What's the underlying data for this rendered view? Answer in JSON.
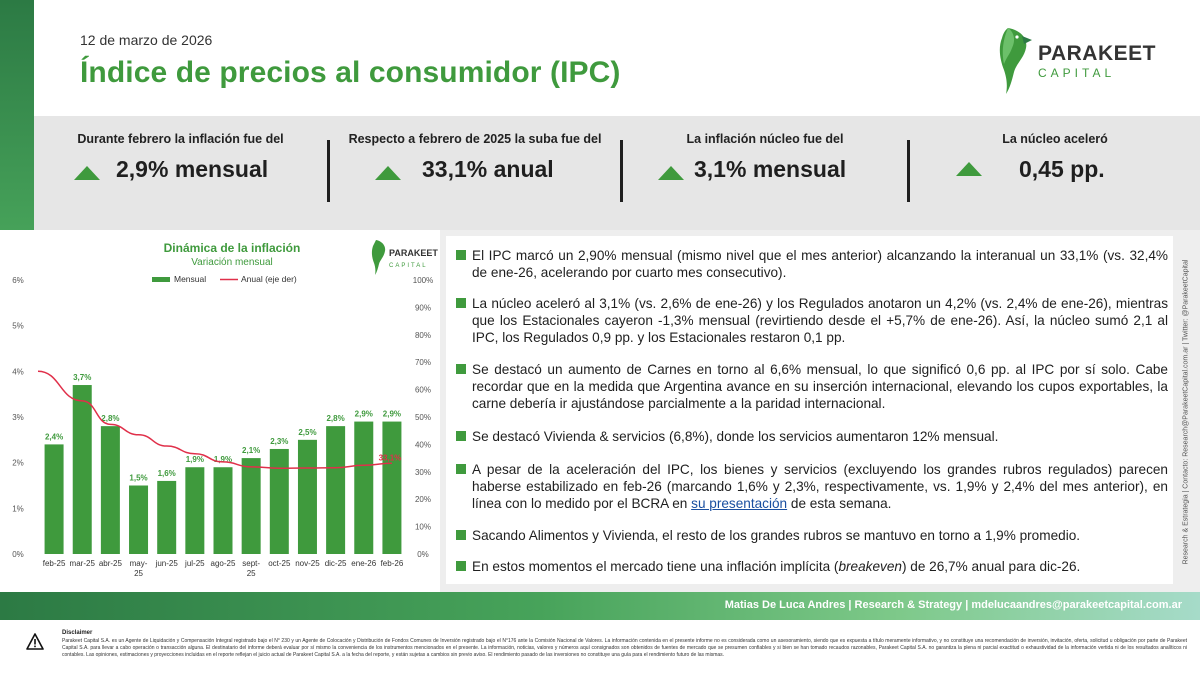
{
  "header": {
    "date": "12 de marzo de 2026",
    "title": "Índice de precios al consumidor (IPC)",
    "logo_word1": "PARAKEET",
    "logo_word2": "CAPITAL"
  },
  "kpis": [
    {
      "label": "Durante febrero la inflación fue del",
      "value": "2,9% mensual",
      "trend": "up"
    },
    {
      "label": "Respecto a febrero de 2025 la suba fue del",
      "value": "33,1% anual",
      "trend": "up"
    },
    {
      "label": "La inflación núcleo fue del",
      "value": "3,1% mensual",
      "trend": "up"
    },
    {
      "label": "La núcleo aceleró",
      "value": "0,45 pp.",
      "trend": "up"
    }
  ],
  "chart_data": {
    "type": "bar",
    "title": "Dinámica de la inflación",
    "subtitle": "Variación mensual",
    "categories": [
      "feb-25",
      "mar-25",
      "abr-25",
      "may-25",
      "jun-25",
      "jul-25",
      "ago-25",
      "sept-25",
      "oct-25",
      "nov-25",
      "dic-25",
      "ene-26",
      "feb-26"
    ],
    "series": [
      {
        "name": "Mensual",
        "kind": "bar",
        "axis": "left",
        "values": [
          2.4,
          3.7,
          2.8,
          1.5,
          1.6,
          1.9,
          1.9,
          2.1,
          2.3,
          2.5,
          2.8,
          2.9,
          2.9
        ],
        "labels": [
          "2,4%",
          "3,7%",
          "2,8%",
          "1,5%",
          "1,6%",
          "1,9%",
          "1,9%",
          "2,1%",
          "2,3%",
          "2,5%",
          "2,8%",
          "2,9%",
          "2,9%"
        ]
      },
      {
        "name": "Anual (eje der)",
        "kind": "line",
        "axis": "right",
        "values": [
          66.7,
          55.9,
          47.3,
          43.5,
          39.4,
          36.6,
          33.6,
          31.8,
          31.3,
          31.4,
          31.5,
          32.4,
          33.1
        ],
        "end_label": "33,1%"
      }
    ],
    "ylim_left": [
      0,
      6
    ],
    "ylim_right": [
      0,
      100
    ],
    "left_ticks": [
      "0%",
      "1%",
      "2%",
      "3%",
      "4%",
      "5%",
      "6%"
    ],
    "right_ticks": [
      "0%",
      "10%",
      "20%",
      "30%",
      "40%",
      "50%",
      "60%",
      "70%",
      "80%",
      "90%",
      "100%"
    ],
    "legend_position": "top-left",
    "colors": {
      "bar": "#3f9a3d",
      "line": "#e0304a",
      "title": "#3f9a3d"
    },
    "logo_word1": "PARAKEET",
    "logo_word2": "CAPITAL"
  },
  "bullets": [
    {
      "text": "El IPC marcó un 2,90% mensual (mismo nivel que el mes anterior) alcanzando la interanual un 33,1% (vs. 32,4% de ene-26, acelerando por cuarto mes consecutivo)."
    },
    {
      "text": "La núcleo aceleró al 3,1% (vs. 2,6% de ene-26) y los Regulados anotaron un 4,2% (vs. 2,4% de ene-26), mientras que los Estacionales cayeron -1,3% mensual (revirtiendo desde el +5,7% de ene-26). Así, la núcleo sumó 2,1 al IPC, los Regulados 0,9 pp. y los Estacionales restaron 0,1 pp."
    },
    {
      "text": "Se destacó un aumento de Carnes en torno al 6,6% mensual, lo que significó 0,6 pp. al IPC por sí solo. Cabe recordar que en la medida que Argentina avance en su inserción internacional, elevando los cupos exportables, la carne debería ir ajustándose parcialmente a la paridad internacional."
    },
    {
      "text": "Se destacó Vivienda & servicios (6,8%), donde los servicios aumentaron 12% mensual."
    },
    {
      "text_before": "A pesar de la aceleración del IPC, los bienes y servicios (excluyendo los grandes rubros regulados) parecen haberse estabilizado en feb-26 (marcando 1,6% y 2,3%, respectivamente, vs. 1,9% y 2,4% del mes anterior), en línea con lo medido por el BCRA en ",
      "link": "su presentación",
      "text_after": " de esta semana."
    },
    {
      "text": "Sacando Alimentos y Vivienda, el resto de los grandes rubros se mantuvo en torno a 1,9% promedio."
    },
    {
      "text_before": "En estos momentos el mercado tiene una inflación implícita (",
      "emph": "breakeven",
      "text_after": ") de 26,7% anual para dic-26."
    }
  ],
  "side_note": "Research & Estrategia | Contacto: Research@ParakeetCapital.com.ar | Twitter: @ParakeetCapital",
  "footer": {
    "signature": "Matias De Luca Andres   |   Research & Strategy   |   mdelucaandres@parakeetcapital.com.ar",
    "disclaimer_title": "Disclaimer",
    "disclaimer_body": "Parakeet Capital S.A. es un Agente de Liquidación y Compensación Integral registrado bajo el N° 230 y un Agente de Colocación y Distribución de Fondos Comunes de Inversión registrado bajo el N°176 ante la Comisión Nacional de Valores. La información contenida en el presente informe no es considerada como un asesoramiento, siendo que es expuesta a título meramente informativo, y no constituye una recomendación de inversión, invitación, oferta, solicitud u obligación por parte de Parakeet Capital S.A. para llevar a cabo operación o transacción alguna. El destinatario del informe deberá evaluar por sí mismo la conveniencia de los instrumentos mencionados en el presente. La información, noticias, valores y números aquí consignados son obtenidos de fuentes de mercado que se presumen confiables y si bien se han tomado recaudos razonables, Parakeet Capital S.A. no garantiza la plena ni parcial exactitud o exhaustividad de la información vertida ni de los resultados analíticos ni contables. Las opiniones, estimaciones y proyecciones incluidas en el reporte reflejan el juicio actual de Parakeet Capital S.A. a la fecha del reporte, y están sujetas a cambios sin previo aviso. El rendimiento pasado de las inversiones no constituye una guía para el rendimiento futuro de las mismas."
  }
}
